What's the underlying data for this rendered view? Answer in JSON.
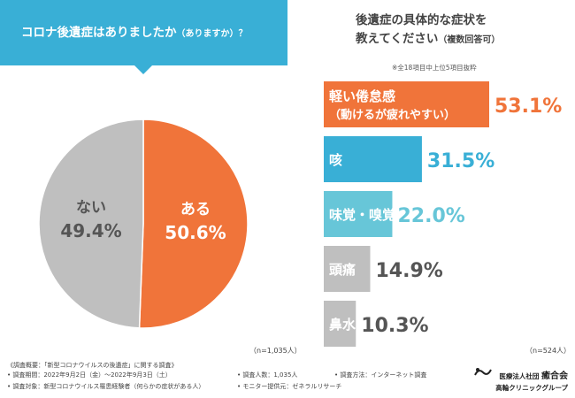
{
  "header": {
    "left_question": "コロナ後遺症はありましたか",
    "left_question_sub": "（ありますか）？",
    "right_question_line1": "後遺症の具体的な症状を",
    "right_question_line2": "教えてください",
    "right_question_sub": "（複数回答可）",
    "top5_note": "※全18項目中上位5項目抜粋"
  },
  "sample_sizes": {
    "left": "（n=1,035人）",
    "right": "（n=524人）"
  },
  "footer": {
    "overview": "《調査概要：「新型コロナウイルスの後遺症」に関する調査》",
    "period": "• 調査期間：2022年9月2日（金）〜2022年9月3日（土）",
    "subjects": "• 調査対象：新型コロナウイルス罹患経験者（何らかの症状がある人）",
    "count": "• 調査人数：1,035人",
    "monitor": "• モニター提供元：ゼネラルリサーチ",
    "method": "• 調査方法：インターネット調査"
  },
  "clinic": {
    "corp": "医療法人社団",
    "name": "癒合会",
    "group": "高輪クリニックグループ"
  },
  "colors": {
    "orange": "#f0743a",
    "gray": "#bfbfbf",
    "blue": "#39afd6",
    "light_blue": "#67c6d8",
    "text_orange": "#f0743a"
  },
  "chart_data": [
    {
      "type": "pie",
      "title": "コロナ後遺症はありましたか（ありますか）？",
      "slices": [
        {
          "label": "ある",
          "value": 50.6,
          "value_text": "50.6%",
          "color": "#f0743a"
        },
        {
          "label": "ない",
          "value": 49.4,
          "value_text": "49.4%",
          "color": "#bfbfbf"
        }
      ]
    },
    {
      "type": "bar",
      "orientation": "horizontal",
      "title": "後遺症の具体的な症状を教えてください（複数回答可）",
      "xlim": [
        0,
        53.1
      ],
      "categories": [
        "軽い倦怠感",
        "咳",
        "味覚・嗅覚障害",
        "頭痛",
        "鼻水・鼻づまり"
      ],
      "category_sub": [
        "（動けるが疲れやすい）",
        "",
        "",
        "",
        ""
      ],
      "values": [
        53.1,
        31.5,
        22.0,
        14.9,
        10.3
      ],
      "value_text": [
        "53.1%",
        "31.5%",
        "22.0%",
        "14.9%",
        "10.3%"
      ],
      "colors": [
        "#f0743a",
        "#39afd6",
        "#67c6d8",
        "#bfbfbf",
        "#bfbfbf"
      ]
    }
  ]
}
